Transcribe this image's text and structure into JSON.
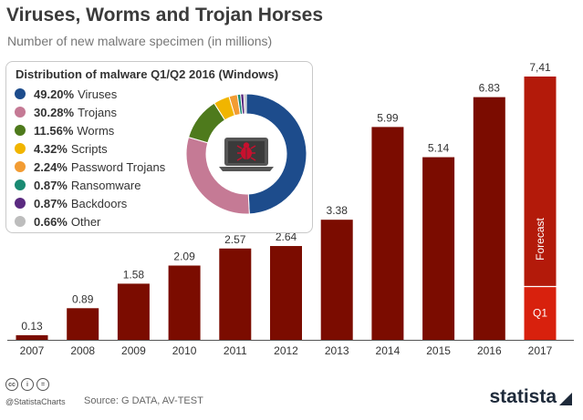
{
  "chart_data": {
    "type": "bar",
    "title": "Viruses, Worms and Trojan Horses",
    "subtitle": "Number of new malware specimen (in millions)",
    "categories": [
      "2007",
      "2008",
      "2009",
      "2010",
      "2011",
      "2012",
      "2013",
      "2014",
      "2015",
      "2016",
      "2017"
    ],
    "values": [
      0.13,
      0.89,
      1.58,
      2.09,
      2.57,
      2.64,
      3.38,
      5.99,
      5.14,
      6.83,
      7.41
    ],
    "value_labels": [
      "0.13",
      "0.89",
      "1.58",
      "2.09",
      "2.57",
      "2.64",
      "3.38",
      "5.99",
      "5.14",
      "6.83",
      "7,41"
    ],
    "ylim": [
      0,
      7.41
    ],
    "forecast": {
      "category": "2017",
      "q1_value": 1.5,
      "q1_label": "Q1",
      "forecast_label": "Forecast"
    },
    "colors": {
      "bar": "#7b0c00",
      "forecast": "#b31a0a",
      "q1": "#d8210d"
    },
    "inset": {
      "type": "pie",
      "title": "Distribution of malware Q1/Q2 2016 (Windows)",
      "slices": [
        {
          "label": "Viruses",
          "pct_text": "49.20%",
          "value": 49.2,
          "color": "#1d4c8c"
        },
        {
          "label": "Trojans",
          "pct_text": "30.28%",
          "value": 30.28,
          "color": "#c57a95"
        },
        {
          "label": "Worms",
          "pct_text": "11.56%",
          "value": 11.56,
          "color": "#4e7a1c"
        },
        {
          "label": "Scripts",
          "pct_text": "4.32%",
          "value": 4.32,
          "color": "#f1b500"
        },
        {
          "label": "Password Trojans",
          "pct_text": "2.24%",
          "value": 2.24,
          "color": "#f29c33"
        },
        {
          "label": "Ransomware",
          "pct_text": "0.87%",
          "value": 0.87,
          "color": "#1a8a72"
        },
        {
          "label": "Backdoors",
          "pct_text": "0.87%",
          "value": 0.87,
          "color": "#5a2a80"
        },
        {
          "label": "Other",
          "pct_text": "0.66%",
          "value": 0.66,
          "color": "#bdbdbd"
        }
      ]
    }
  },
  "footer": {
    "handle": "@StatistaCharts",
    "source": "Source: G DATA, AV-TEST",
    "brand": "statista",
    "cc_icons": [
      "cc",
      "i",
      "="
    ]
  }
}
